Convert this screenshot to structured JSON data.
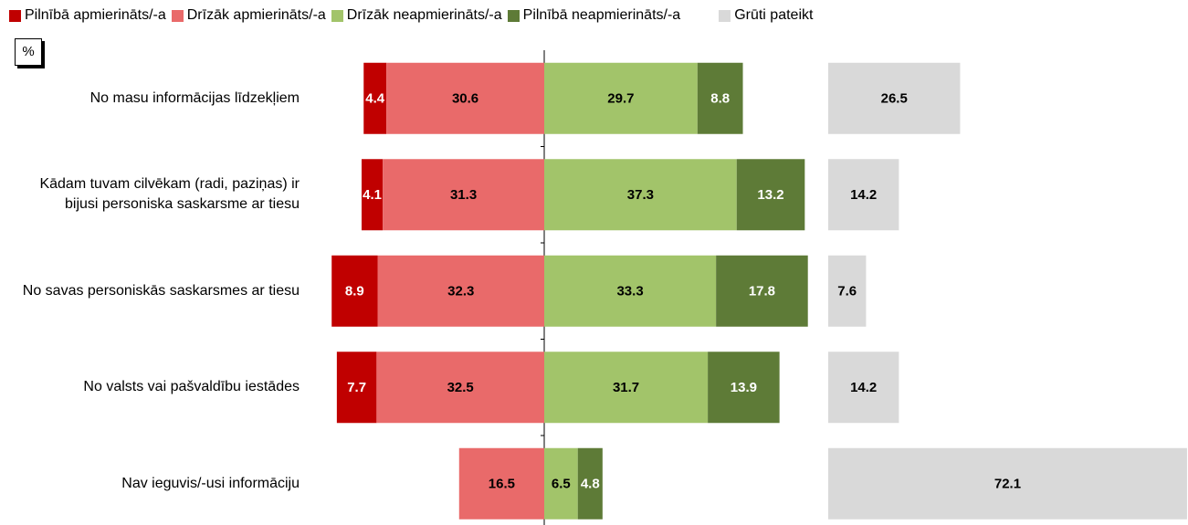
{
  "chart_data": {
    "type": "bar",
    "unit": "%",
    "categories": [
      "No masu informācijas līdzekļiem",
      "Kādam tuvam cilvēkam (radi, paziņas) ir bijusi personiska saskarsme ar tiesu",
      "No savas personiskās saskarsmes ar tiesu",
      "No valsts vai pašvaldību iestādes",
      "Nav ieguvis/-usi informāciju"
    ],
    "series": [
      {
        "name": "Pilnībā apmierināts/-a",
        "color": "#c00000",
        "values": [
          4.4,
          4.1,
          8.9,
          7.7,
          null
        ]
      },
      {
        "name": "Drīzāk apmierināts/-a",
        "color": "#e96a6a",
        "values": [
          30.6,
          31.3,
          32.3,
          32.5,
          16.5
        ]
      },
      {
        "name": "Drīzāk neapmierināts/-a",
        "color": "#a2c46a",
        "values": [
          29.7,
          37.3,
          33.3,
          31.7,
          6.5
        ]
      },
      {
        "name": "Pilnībā neapmierināts/-a",
        "color": "#5e7b37",
        "values": [
          8.8,
          13.2,
          17.8,
          13.9,
          4.8
        ]
      },
      {
        "name": "Grūti pateikt",
        "color": "#d9d9d9",
        "values": [
          26.5,
          14.2,
          7.6,
          14.2,
          72.1
        ]
      }
    ]
  }
}
